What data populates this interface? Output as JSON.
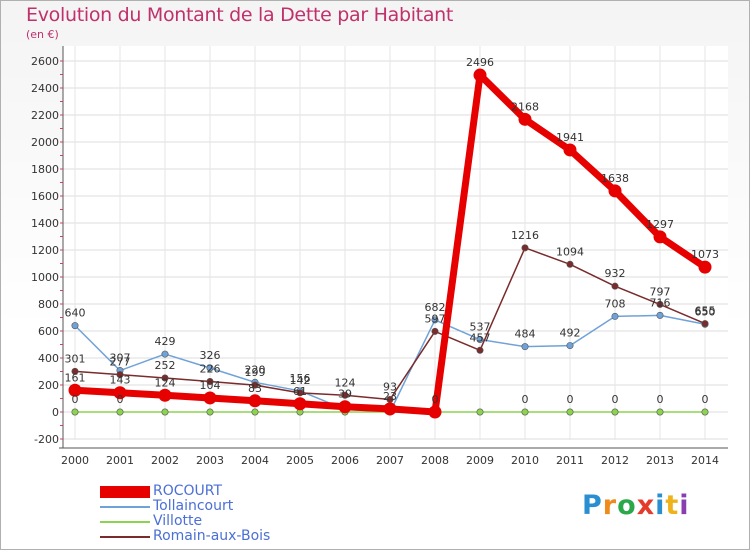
{
  "chart_data": {
    "type": "line",
    "title": "Evolution du Montant de la Dette par Habitant",
    "subtitle": "(en €)",
    "xlabel": "",
    "ylabel": "",
    "x": [
      "2000",
      "2001",
      "2002",
      "2003",
      "2004",
      "2005",
      "2006",
      "2007",
      "2008",
      "2009",
      "2010",
      "2011",
      "2012",
      "2013",
      "2014"
    ],
    "ylim": [
      -200,
      2600
    ],
    "yticks": [
      "-200",
      "0",
      "200",
      "400",
      "600",
      "800",
      "1000",
      "1200",
      "1400",
      "1600",
      "1800",
      "2000",
      "2200",
      "2400",
      "2600"
    ],
    "grid": true,
    "legend_placement": "bottom-left",
    "series": [
      {
        "name": "ROCOURT",
        "color": "#e60000",
        "stroke": 7,
        "values": [
          161,
          143,
          124,
          104,
          83,
          61,
          39,
          23,
          0,
          2496,
          2168,
          1941,
          1638,
          1297,
          1073
        ],
        "labels": [
          "161",
          "143",
          "124",
          "104",
          "83",
          "61",
          "39",
          "23",
          "0",
          "2496",
          "2168",
          "1941",
          "1638",
          "1297",
          "1073"
        ]
      },
      {
        "name": "Tollaincourt",
        "color": "#6fa2d8",
        "stroke": 1.5,
        "values": [
          640,
          307,
          429,
          326,
          220,
          156,
          20,
          0,
          682,
          537,
          484,
          492,
          708,
          716,
          650
        ],
        "labels": [
          "640",
          "307",
          "429",
          "326",
          "220",
          "156",
          "",
          "",
          "682",
          "537",
          "484",
          "492",
          "708",
          "716",
          "650"
        ]
      },
      {
        "name": "Villotte",
        "color": "#8cd350",
        "stroke": 1.5,
        "values": [
          0,
          0,
          0,
          0,
          0,
          0,
          0,
          0,
          0,
          0,
          0,
          0,
          0,
          0,
          0
        ],
        "labels": [
          "0",
          "0",
          "",
          "",
          "",
          "",
          "",
          "",
          "",
          "",
          "0",
          "0",
          "0",
          "0",
          "0"
        ]
      },
      {
        "name": "Romain-aux-Bois",
        "color": "#7a2b2b",
        "stroke": 1.5,
        "values": [
          301,
          277,
          252,
          226,
          199,
          142,
          124,
          93,
          597,
          457,
          1216,
          1094,
          932,
          797,
          655
        ],
        "labels": [
          "301",
          "277",
          "252",
          "226",
          "199",
          "142",
          "124",
          "93",
          "597",
          "457",
          "1216",
          "1094",
          "932",
          "797",
          "655"
        ]
      }
    ]
  },
  "legend": {
    "items": [
      {
        "label": "ROCOURT",
        "color": "#e60000",
        "height": 12
      },
      {
        "label": "Tollaincourt",
        "color": "#6fa2d8",
        "height": 2
      },
      {
        "label": "Villotte",
        "color": "#8cd350",
        "height": 2
      },
      {
        "label": "Romain-aux-Bois",
        "color": "#7a2b2b",
        "height": 2
      }
    ]
  },
  "logo": {
    "letters": [
      "P",
      "r",
      "o",
      "x",
      "i",
      "t",
      "i"
    ],
    "colors": [
      "#2a8fd0",
      "#f08a1a",
      "#2aa84a",
      "#e53b2a",
      "#2a8fd0",
      "#f0b21a",
      "#8a3fb0"
    ]
  }
}
